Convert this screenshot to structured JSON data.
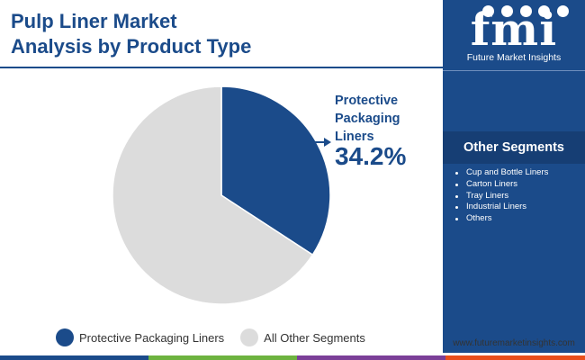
{
  "header": {
    "title_line1": "Pulp Liner Market",
    "title_line2": "Analysis by Product Type"
  },
  "callout": {
    "label_line1": "Protective",
    "label_line2": "Packaging",
    "label_line3": "Liners",
    "value": "34.2%"
  },
  "chart_data": {
    "type": "pie",
    "title": "Pulp Liner Market Analysis by Product Type",
    "slices": [
      {
        "name": "Protective Packaging Liners",
        "value": 34.2,
        "color": "#1b4b8a"
      },
      {
        "name": "All Other Segments",
        "value": 65.8,
        "color": "#dcdcdc"
      }
    ],
    "start_angle_deg": 0,
    "direction": "clockwise",
    "legend_position": "bottom"
  },
  "legend": {
    "items": [
      {
        "label": "Protective Packaging Liners",
        "color": "#1b4b8a"
      },
      {
        "label": "All Other Segments",
        "color": "#dcdcdc"
      }
    ]
  },
  "sidebar": {
    "logo_text": "fmi",
    "logo_name": "Future Market Insights",
    "segments_title": "Other Segments",
    "segments": [
      "Cup and Bottle Liners",
      "Carton Liners",
      "Tray Liners",
      "Industrial Liners",
      "Others"
    ],
    "website": "www.futuremarketinsights.com"
  },
  "colors": {
    "brand_blue": "#1b4b8a",
    "bottom_bar": [
      "#1b4b8a",
      "#6db33f",
      "#7b3f98",
      "#e94e1b"
    ]
  }
}
